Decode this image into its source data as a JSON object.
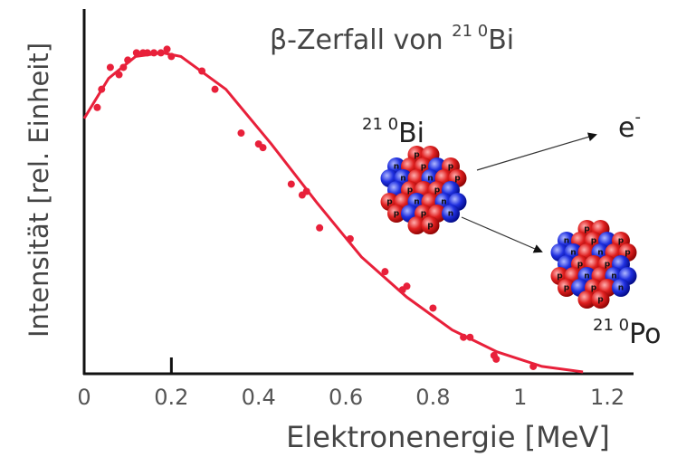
{
  "chart_data": {
    "type": "scatter",
    "title": {
      "prefix": "β-Zerfall von ",
      "mass": "21 0",
      "element": "Bi"
    },
    "x_label": "Elektronenergie [MeV]",
    "y_label": "Intensität [rel. Einheit]",
    "xlim": [
      0,
      1.26
    ],
    "ylim": [
      0,
      1
    ],
    "xticks": [
      0,
      0.2,
      0.4,
      0.6,
      0.8,
      1.0,
      1.2
    ],
    "series": [
      {
        "type": "scatter",
        "color": "#e8203a",
        "x": [
          0.03,
          0.04,
          0.06,
          0.08,
          0.09,
          0.1,
          0.12,
          0.135,
          0.145,
          0.16,
          0.176,
          0.19,
          0.2,
          0.27,
          0.3,
          0.36,
          0.4,
          0.41,
          0.475,
          0.5,
          0.51,
          0.54,
          0.61,
          0.69,
          0.73,
          0.74,
          0.8,
          0.87,
          0.885,
          0.94,
          0.945,
          1.03
        ],
        "values": [
          0.73,
          0.78,
          0.84,
          0.82,
          0.84,
          0.86,
          0.88,
          0.88,
          0.88,
          0.88,
          0.88,
          0.89,
          0.87,
          0.83,
          0.78,
          0.66,
          0.63,
          0.62,
          0.52,
          0.49,
          0.5,
          0.4,
          0.37,
          0.28,
          0.23,
          0.24,
          0.18,
          0.1,
          0.1,
          0.05,
          0.04,
          0.02
        ]
      },
      {
        "type": "line",
        "color": "#e8203a",
        "x": [
          0,
          0.056,
          0.118,
          0.18,
          0.222,
          0.325,
          0.429,
          0.533,
          0.636,
          0.74,
          0.844,
          0.947,
          1.05,
          1.144
        ],
        "values": [
          0.7,
          0.81,
          0.87,
          0.88,
          0.87,
          0.78,
          0.63,
          0.47,
          0.32,
          0.21,
          0.12,
          0.06,
          0.02,
          0.005
        ]
      }
    ],
    "nuclei": [
      {
        "mass": "21 0",
        "element": "Bi"
      },
      {
        "mass": "21 0",
        "element": "Po"
      }
    ],
    "electron": {
      "symbol": "e",
      "charge": "-"
    },
    "nucleons": {
      "proton": "p",
      "neutron": "n"
    }
  }
}
